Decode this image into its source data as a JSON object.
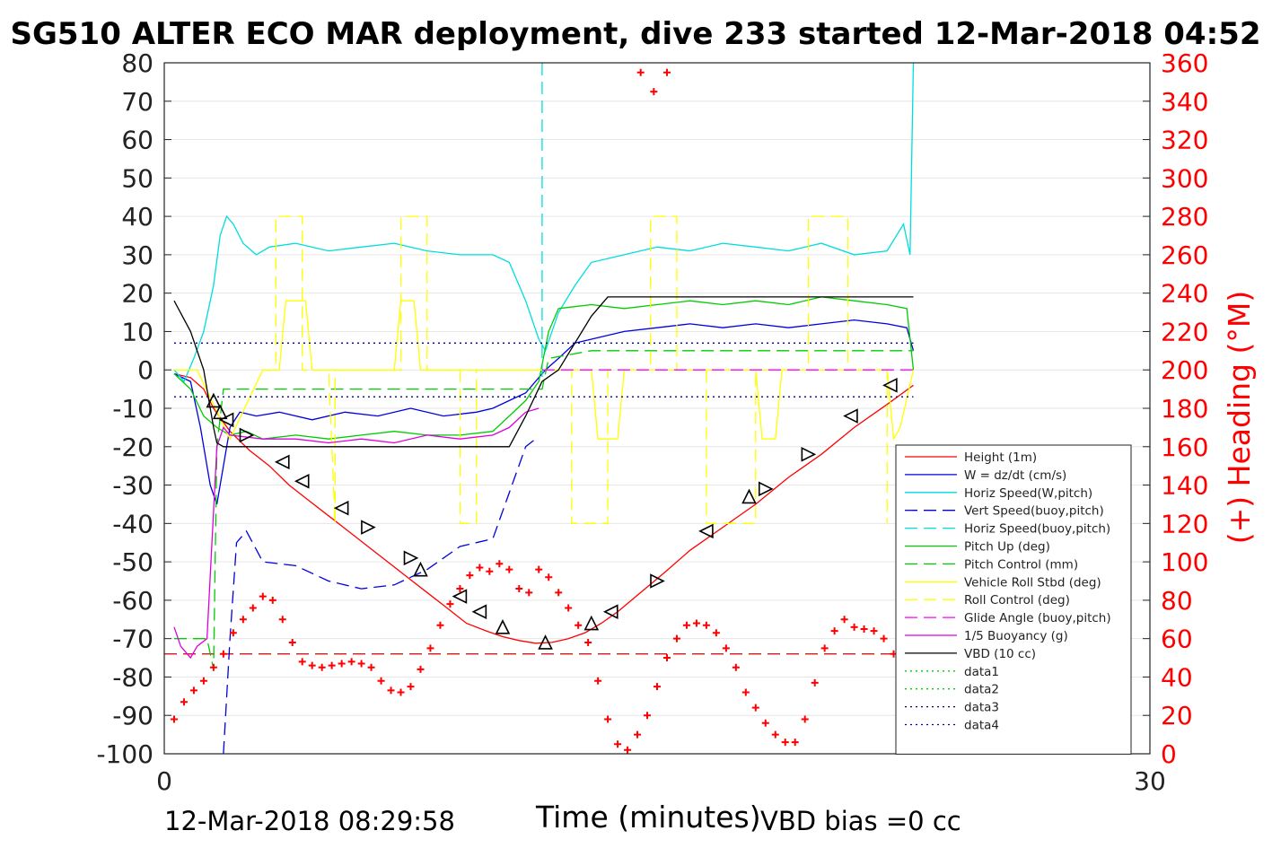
{
  "title": "SG510 ALTER ECO MAR deployment, dive 233 started 12-Mar-2018 04:52",
  "footer": {
    "start_time": "12-Mar-2018 08:29:58",
    "xlabel": "Time (minutes)",
    "vbd_bias": "VBD bias =0 cc"
  },
  "chart_data": {
    "type": "line",
    "xlim": [
      0,
      30
    ],
    "x_ticks": [
      "0",
      "30"
    ],
    "ylim_left": [
      -100,
      80
    ],
    "y_ticks_left": [
      "80",
      "70",
      "60",
      "50",
      "40",
      "30",
      "20",
      "10",
      "0",
      "-10",
      "-20",
      "-30",
      "-40",
      "-50",
      "-60",
      "-70",
      "-80",
      "-90",
      "-100"
    ],
    "ylim_right": [
      0,
      360
    ],
    "y_ticks_right": [
      "360",
      "340",
      "320",
      "300",
      "280",
      "260",
      "240",
      "220",
      "200",
      "180",
      "160",
      "140",
      "120",
      "100",
      "80",
      "60",
      "40",
      "20",
      "0"
    ],
    "ylabel_right": "(+) Heading (°M)",
    "grid": "horizontal",
    "legend_position": "lower-right",
    "series": [
      {
        "name": "Height (1m)",
        "color": "#ff0000",
        "style": "solid",
        "axis": "left",
        "x": [
          0.3,
          0.8,
          1.2,
          1.5,
          2.0,
          2.6,
          3.2,
          3.8,
          4.4,
          5.0,
          5.6,
          6.2,
          6.8,
          7.4,
          8.0,
          8.6,
          9.2,
          9.8,
          10.3,
          10.8,
          11.3,
          11.8,
          12.3,
          12.8,
          13.3,
          13.8,
          14.5,
          15.2,
          16.0,
          17.0,
          18.0,
          19.0,
          20.0,
          21.0,
          22.0,
          22.8
        ],
        "y": [
          -1,
          -2,
          -5,
          -10,
          -16,
          -21,
          -25,
          -30,
          -34,
          -38,
          -42,
          -46,
          -50,
          -54,
          -58,
          -62,
          -66,
          -68,
          -69.5,
          -70.5,
          -71.2,
          -71,
          -70,
          -68.5,
          -66,
          -63,
          -58,
          -53,
          -47,
          -41,
          -35,
          -28,
          -22,
          -15,
          -9,
          -4
        ]
      },
      {
        "name": "W = dz/dt (cm/s)",
        "color": "#0000dd",
        "style": "solid",
        "axis": "left",
        "x": [
          0.3,
          0.8,
          1.1,
          1.4,
          1.6,
          1.8,
          2.0,
          2.3,
          2.8,
          3.5,
          4.5,
          5.5,
          6.5,
          7.5,
          8.5,
          9.5,
          10.0,
          10.5,
          11.0,
          11.4,
          11.6,
          12.0,
          12.5,
          13.0,
          14.0,
          15.0,
          16.0,
          17.0,
          18.0,
          19.0,
          20.0,
          21.0,
          22.0,
          22.6,
          22.8
        ],
        "y": [
          -1,
          -3,
          -15,
          -30,
          -35,
          -25,
          -15,
          -11,
          -12,
          -11,
          -13,
          -11,
          -12,
          -10,
          -12,
          -11,
          -10,
          -8,
          -6,
          -2,
          0,
          3,
          7,
          8,
          10,
          11,
          12,
          11,
          12,
          11,
          12,
          13,
          12,
          11,
          5
        ]
      },
      {
        "name": "Horiz Speed(W,pitch)",
        "color": "#00dddd",
        "style": "solid",
        "axis": "left",
        "x": [
          0.3,
          0.6,
          0.9,
          1.2,
          1.5,
          1.7,
          1.9,
          2.1,
          2.4,
          2.8,
          3.2,
          4.0,
          5.0,
          6.0,
          7.0,
          8.0,
          9.0,
          10.0,
          10.5,
          11.0,
          11.4,
          11.6,
          12.0,
          12.5,
          13.0,
          14.0,
          15.0,
          16.0,
          17.0,
          18.0,
          19.0,
          20.0,
          21.0,
          22.0,
          22.5,
          22.7,
          22.8
        ],
        "y": [
          0,
          -3,
          3,
          10,
          22,
          35,
          40,
          38,
          33,
          30,
          32,
          33,
          31,
          32,
          33,
          31,
          30,
          30,
          28,
          18,
          8,
          5,
          15,
          22,
          28,
          30,
          32,
          31,
          33,
          32,
          31,
          33,
          30,
          31,
          38,
          30,
          80
        ]
      },
      {
        "name": "Vert Speed(buoy,pitch)",
        "color": "#0000dd",
        "style": "dashed",
        "axis": "left",
        "x": [
          1.8,
          2.0,
          2.2,
          2.5,
          3.0,
          4.0,
          5.0,
          6.0,
          7.0,
          8.0,
          9.0,
          10.0,
          10.5,
          11.0,
          11.3
        ],
        "y": [
          -100,
          -70,
          -45,
          -42,
          -50,
          -51,
          -55,
          -57,
          -56,
          -52,
          -46,
          -44,
          -32,
          -20,
          -18
        ]
      },
      {
        "name": "Horiz Speed(buoy,pitch)",
        "color": "#00dddd",
        "style": "dashed",
        "axis": "left",
        "x": [
          11.5,
          11.5,
          11.55
        ],
        "y": [
          80,
          -2,
          0
        ]
      },
      {
        "name": "Pitch Up (deg)",
        "color": "#00cc00",
        "style": "solid",
        "axis": "left",
        "x": [
          0.3,
          0.8,
          1.2,
          1.6,
          2.0,
          2.5,
          3.0,
          4.0,
          5.0,
          6.0,
          7.0,
          8.0,
          9.0,
          10.0,
          10.5,
          11.0,
          11.4,
          11.7,
          12.0,
          13.0,
          14.0,
          15.0,
          16.0,
          17.0,
          18.0,
          19.0,
          20.0,
          21.0,
          22.0,
          22.6,
          22.8
        ],
        "y": [
          -1,
          -5,
          -12,
          -15,
          -17,
          -16,
          -18,
          -17,
          -18,
          -17,
          -16,
          -17,
          -17,
          -16,
          -12,
          -8,
          -3,
          10,
          16,
          17,
          16,
          17,
          18,
          17,
          18,
          17,
          19,
          18,
          17,
          16,
          0
        ]
      },
      {
        "name": "Pitch Control (mm)",
        "color": "#00cc00",
        "style": "dashed",
        "axis": "left",
        "x": [
          0.3,
          1.3,
          1.5,
          1.6,
          1.8,
          2.0,
          4.0,
          6.0,
          8.0,
          10.0,
          11.0,
          11.5,
          11.7,
          13.0,
          15.0,
          17.0,
          19.0,
          21.0,
          22.8
        ],
        "y": [
          -70,
          -70,
          -78,
          -20,
          -5,
          -5,
          -5,
          -5,
          -5,
          -5,
          -5,
          -5,
          3,
          5,
          5,
          5,
          5,
          5,
          5
        ]
      },
      {
        "name": "Vehicle Roll Stbd (deg)",
        "color": "#ffff00",
        "style": "solid",
        "axis": "left",
        "x": [
          0.3,
          1.0,
          2.0,
          3.0,
          3.5,
          3.7,
          4.3,
          4.5,
          5.0,
          6.0,
          7.0,
          7.2,
          7.6,
          7.8,
          8.5,
          9.5,
          10.5,
          11.5,
          12.0,
          13.0,
          13.2,
          13.8,
          14.0,
          15.0,
          16.0,
          17.0,
          18.0,
          18.2,
          18.6,
          18.8,
          19.5,
          20.0,
          21.0,
          22.0,
          22.2,
          22.4,
          22.8
        ],
        "y": [
          0,
          0,
          -18,
          0,
          0,
          18,
          18,
          0,
          0,
          0,
          0,
          18,
          18,
          0,
          0,
          0,
          0,
          0,
          0,
          0,
          -18,
          -18,
          0,
          0,
          0,
          0,
          0,
          -18,
          -18,
          0,
          0,
          0,
          0,
          0,
          -18,
          -15,
          0
        ]
      },
      {
        "name": "Roll Control (deg)",
        "color": "#ffff00",
        "style": "dashed",
        "axis": "left",
        "x": [
          3.0,
          3.4,
          3.4,
          4.2,
          4.2,
          5.0,
          5.2,
          5.2,
          7.2,
          7.2,
          8.0,
          8.0,
          9.0,
          9.0,
          9.5,
          9.5,
          12.4,
          12.4,
          13.5,
          13.5,
          14.8,
          14.8,
          15.6,
          15.6,
          16.5,
          16.5,
          18.0,
          18.0,
          19.6,
          19.6,
          20.8,
          20.8,
          22.0,
          22.0
        ],
        "y": [
          0,
          0,
          40,
          40,
          0,
          0,
          -40,
          0,
          0,
          40,
          40,
          0,
          0,
          -40,
          -40,
          0,
          0,
          -40,
          -40,
          0,
          0,
          40,
          40,
          0,
          0,
          -40,
          -40,
          0,
          0,
          40,
          40,
          0,
          0,
          -40
        ]
      },
      {
        "name": "Glide Angle (buoy,pitch)",
        "color": "#ff00ff",
        "style": "dashed",
        "axis": "left",
        "x": [
          11.5,
          22.8
        ],
        "y": [
          0,
          0
        ]
      },
      {
        "name": "1/5 Buoyancy (g)",
        "color": "#dd00dd",
        "style": "solid",
        "axis": "left",
        "x": [
          0.3,
          0.5,
          0.8,
          1.0,
          1.3,
          1.6,
          1.8,
          2.0,
          3.0,
          4.0,
          5.0,
          6.0,
          7.0,
          8.0,
          9.0,
          10.0,
          10.5,
          11.0,
          11.4
        ],
        "y": [
          -67,
          -72,
          -75,
          -72,
          -70,
          -20,
          -15,
          -17,
          -18,
          -18,
          -19,
          -18,
          -19,
          -17,
          -18,
          -17,
          -15,
          -11,
          -10
        ]
      },
      {
        "name": "VBD (10 cc)",
        "color": "#000000",
        "style": "solid",
        "axis": "left",
        "x": [
          0.3,
          0.8,
          1.2,
          1.5,
          1.6,
          1.8,
          2.0,
          4.0,
          6.0,
          8.0,
          9.0,
          10.0,
          10.5,
          11.0,
          11.5,
          12.0,
          13.0,
          13.5,
          14.0,
          16.0,
          18.0,
          20.0,
          22.0,
          22.8
        ],
        "y": [
          18,
          10,
          0,
          -15,
          -19,
          -20,
          -20,
          -20,
          -20,
          -20,
          -20,
          -20,
          -20,
          -12,
          -3,
          0,
          14,
          19,
          19,
          19,
          19,
          19,
          19,
          19
        ]
      },
      {
        "name": "data1",
        "color": "#00cc00",
        "style": "dotted",
        "axis": "left",
        "x": [],
        "y": []
      },
      {
        "name": "data2",
        "color": "#00cc00",
        "style": "dotted",
        "axis": "left",
        "x": [],
        "y": []
      },
      {
        "name": "data3",
        "color": "#000088",
        "style": "dotted",
        "axis": "left",
        "x": [
          0.3,
          22.8
        ],
        "y": [
          7,
          7
        ]
      },
      {
        "name": "data4",
        "color": "#000088",
        "style": "dotted",
        "axis": "left",
        "x": [
          0.3,
          22.8
        ],
        "y": [
          -7,
          -7
        ]
      }
    ],
    "heading": {
      "name": "Heading",
      "color": "#ff0000",
      "marker": "+",
      "axis": "right",
      "x": [
        0.3,
        0.6,
        0.9,
        1.2,
        1.5,
        1.8,
        2.1,
        2.4,
        2.7,
        3.0,
        3.3,
        3.6,
        3.9,
        4.2,
        4.5,
        4.8,
        5.1,
        5.4,
        5.7,
        6.0,
        6.3,
        6.6,
        6.9,
        7.2,
        7.5,
        7.8,
        8.1,
        8.4,
        8.7,
        9.0,
        9.3,
        9.6,
        9.9,
        10.2,
        10.5,
        10.8,
        11.1,
        11.4,
        11.7,
        12.0,
        12.3,
        12.6,
        12.9,
        13.2,
        13.5,
        13.8,
        14.1,
        14.4,
        14.7,
        15.0,
        15.3,
        15.6,
        15.9,
        16.2,
        16.5,
        16.8,
        17.1,
        17.4,
        17.7,
        18.0,
        18.3,
        18.6,
        18.9,
        19.2,
        19.5,
        19.8,
        20.1,
        20.4,
        20.7,
        21.0,
        21.3,
        21.6,
        21.9,
        22.2,
        22.5,
        22.8
      ],
      "y": [
        18,
        27,
        33,
        38,
        45,
        52,
        63,
        70,
        76,
        82,
        80,
        70,
        58,
        48,
        46,
        45,
        46,
        47,
        48,
        47,
        45,
        38,
        33,
        32,
        35,
        44,
        55,
        67,
        78,
        86,
        93,
        97,
        95,
        99,
        96,
        86,
        84,
        96,
        92,
        84,
        76,
        67,
        58,
        38,
        18,
        5,
        2,
        10,
        20,
        35,
        50,
        60,
        67,
        68,
        67,
        63,
        55,
        45,
        32,
        24,
        16,
        10,
        6,
        6,
        18,
        37,
        55,
        64,
        70,
        66,
        65,
        64,
        60,
        52,
        44,
        40
      ]
    },
    "heading_overflow": {
      "x": [
        14.5,
        14.9,
        15.3
      ],
      "y": [
        355,
        345,
        355
      ]
    },
    "reference_line": {
      "color": "#cc0000",
      "style": "dashed",
      "axis": "left",
      "y": -74
    },
    "markers": {
      "symbol": "triangle",
      "points": [
        {
          "x": 1.5,
          "y": -8,
          "dir": "up"
        },
        {
          "x": 1.7,
          "y": -11,
          "dir": "up"
        },
        {
          "x": 1.9,
          "y": -13,
          "dir": "left"
        },
        {
          "x": 2.5,
          "y": -17,
          "dir": "right"
        },
        {
          "x": 3.6,
          "y": -24,
          "dir": "left"
        },
        {
          "x": 4.2,
          "y": -29,
          "dir": "left"
        },
        {
          "x": 5.4,
          "y": -36,
          "dir": "left"
        },
        {
          "x": 6.2,
          "y": -41,
          "dir": "right"
        },
        {
          "x": 7.5,
          "y": -49,
          "dir": "right"
        },
        {
          "x": 7.8,
          "y": -52,
          "dir": "up"
        },
        {
          "x": 9.0,
          "y": -59,
          "dir": "left"
        },
        {
          "x": 9.6,
          "y": -63,
          "dir": "left"
        },
        {
          "x": 10.3,
          "y": -67,
          "dir": "up"
        },
        {
          "x": 11.6,
          "y": -71,
          "dir": "up"
        },
        {
          "x": 13.0,
          "y": -66,
          "dir": "up"
        },
        {
          "x": 13.6,
          "y": -63,
          "dir": "left"
        },
        {
          "x": 15.0,
          "y": -55,
          "dir": "right"
        },
        {
          "x": 16.5,
          "y": -42,
          "dir": "left"
        },
        {
          "x": 17.8,
          "y": -33,
          "dir": "up"
        },
        {
          "x": 18.3,
          "y": -31,
          "dir": "right"
        },
        {
          "x": 19.6,
          "y": -22,
          "dir": "right"
        },
        {
          "x": 20.9,
          "y": -12,
          "dir": "left"
        },
        {
          "x": 22.1,
          "y": -4,
          "dir": "left"
        }
      ]
    }
  }
}
